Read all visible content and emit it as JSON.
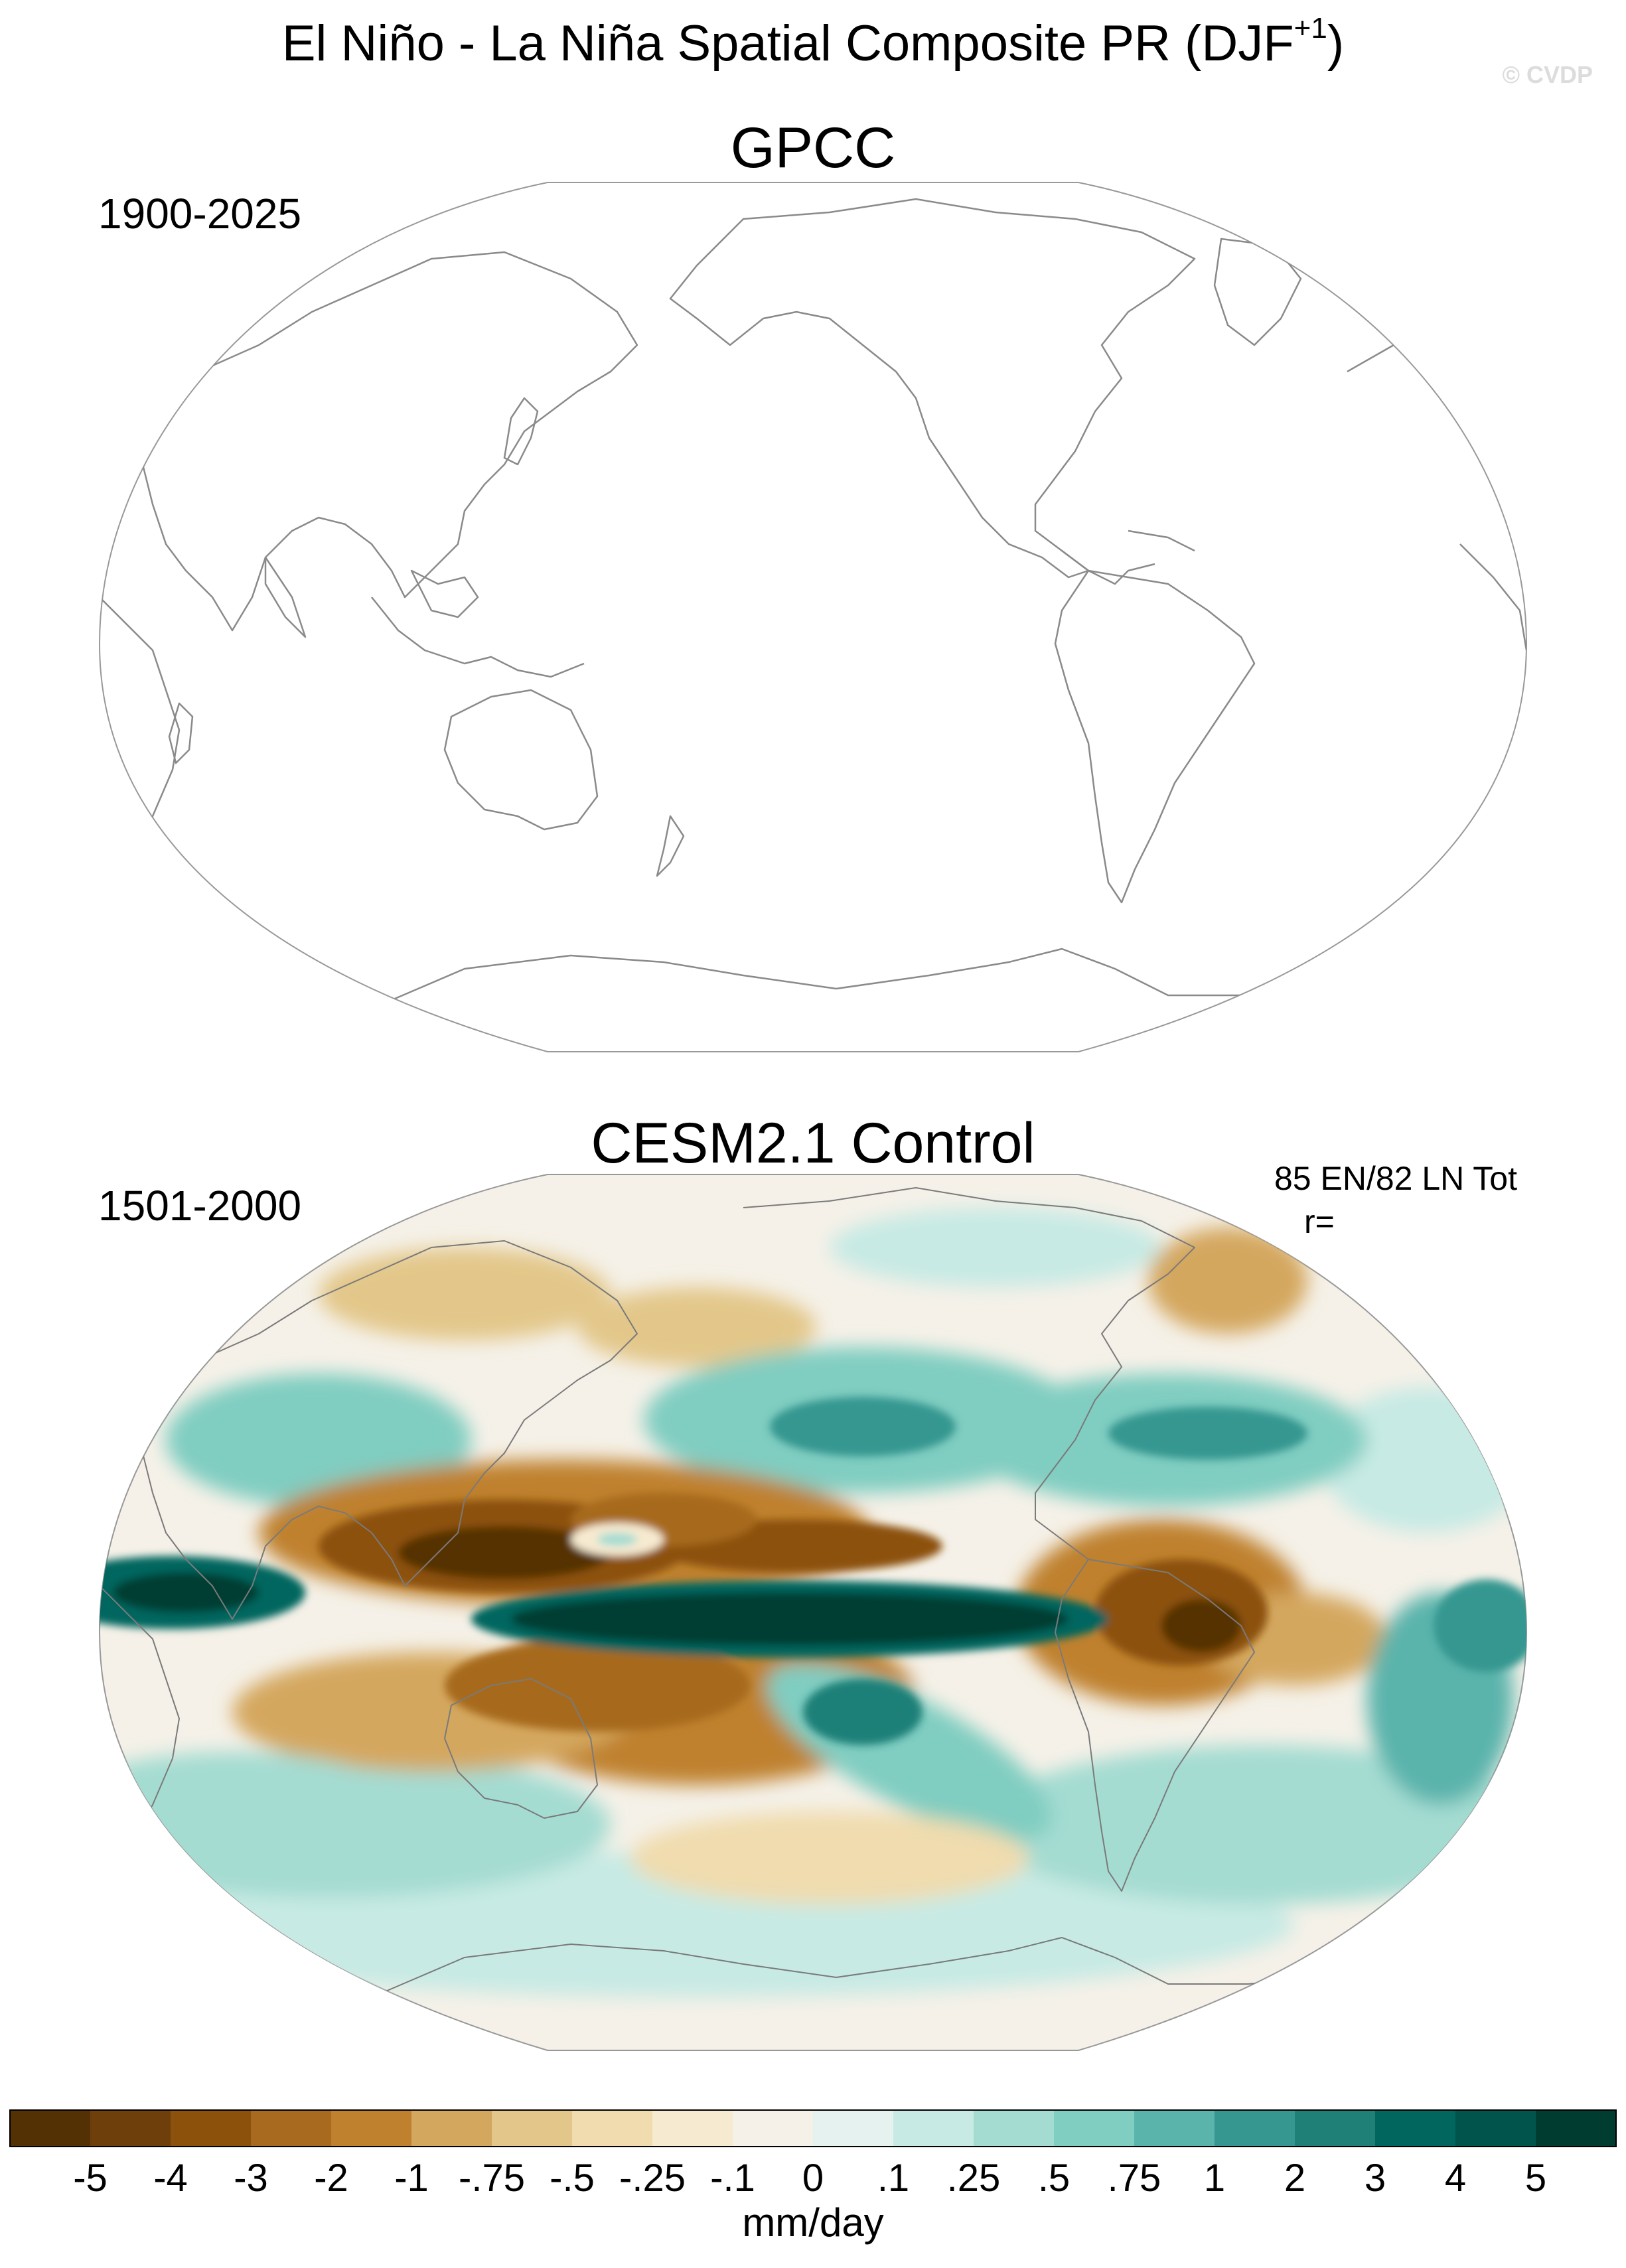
{
  "figure": {
    "title": "El Niño - La Niña Spatial Composite PR (DJF",
    "title_superscript": "+1",
    "title_suffix": ")",
    "watermark": "© CVDP"
  },
  "panels": [
    {
      "title": "GPCC",
      "period": "1900-2025",
      "data_shown": false
    },
    {
      "title": "CESM2.1 Control",
      "period": "1501-2000",
      "composite_counts": "85 EN/82 LN Tot",
      "pattern_correlation": "r=",
      "data_shown": true
    }
  ],
  "colorbar": {
    "unit_label": "mm/day",
    "tick_labels": [
      "-5",
      "-4",
      "-3",
      "-2",
      "-1",
      "-.75",
      "-.5",
      "-.25",
      "-.1",
      "0",
      ".1",
      ".25",
      ".5",
      ".75",
      "1",
      "2",
      "3",
      "4",
      "5"
    ],
    "colors": [
      "#543005",
      "#6f3f0b",
      "#8c510a",
      "#a76a1f",
      "#bf812d",
      "#d4a75f",
      "#e3c78a",
      "#f0dcae",
      "#f6ead0",
      "#f5f1e8",
      "#e6f2f0",
      "#c7eae4",
      "#a4dcd2",
      "#80cdc1",
      "#5ab4ac",
      "#359790",
      "#1f8078",
      "#01665e",
      "#01544b",
      "#003c30"
    ],
    "range": [
      -5,
      5
    ]
  }
}
